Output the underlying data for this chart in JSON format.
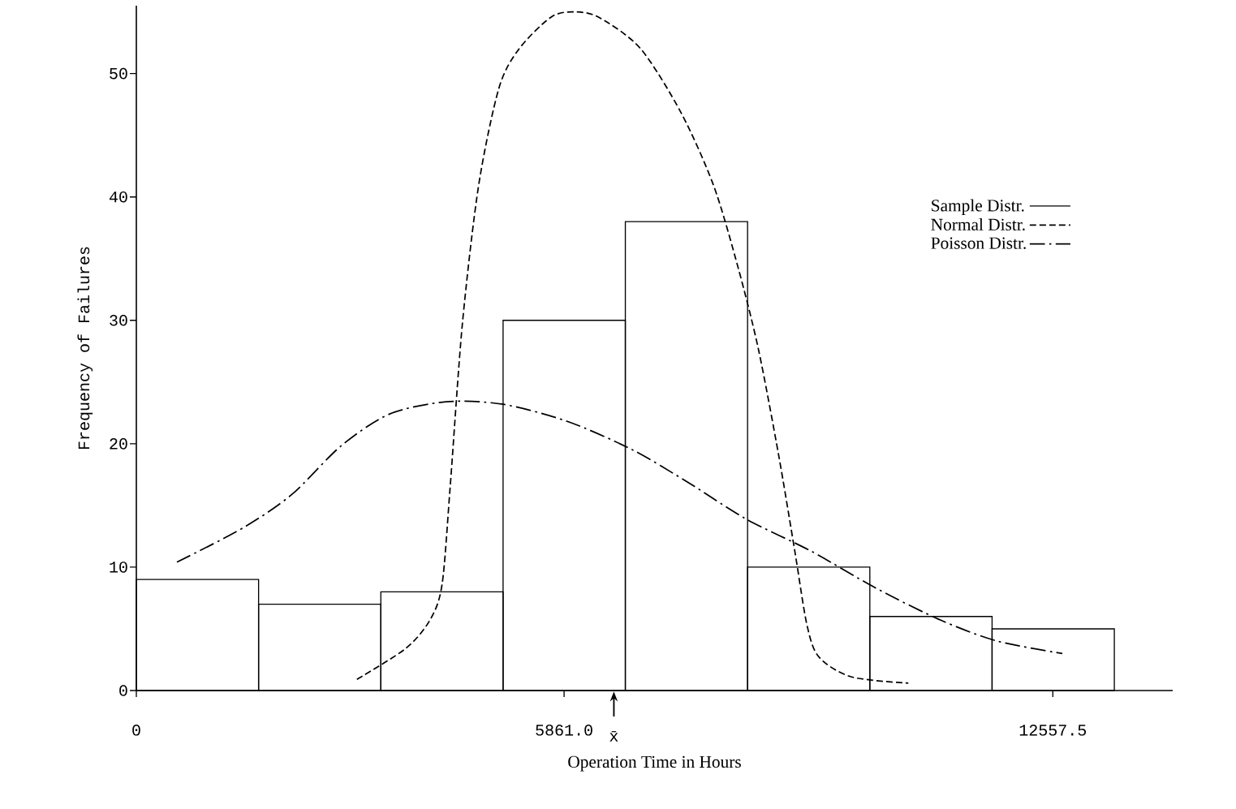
{
  "chart_data": {
    "type": "histogram",
    "xlabel": "Operation Time in Hours",
    "ylabel": "Frequency of Failures",
    "xlim": [
      0,
      14200
    ],
    "ylim": [
      0,
      55.5
    ],
    "xticks": [
      0,
      {
        "value": 5861,
        "label": "5861.0"
      },
      {
        "value": 12557.5,
        "label": "12557.5"
      }
    ],
    "yticks": [
      0,
      10,
      20,
      30,
      40,
      50
    ],
    "legend": "right",
    "grid": false,
    "annotations": [
      "x̄"
    ],
    "series": [
      {
        "name": "Sample Distr.",
        "color": "#000000",
        "line_style": "solid",
        "bins": [
          0,
          1675,
          3350,
          5025,
          6700,
          8375,
          10050,
          11725,
          13400
        ],
        "values": [
          9,
          7,
          8,
          30,
          38,
          10,
          6,
          5
        ]
      },
      {
        "name": "Normal Distr.",
        "type": "line",
        "color": "#000000",
        "line_style": "dashed",
        "x": [
          3022,
          3689,
          4022,
          4189,
          4300,
          4467,
          4689,
          4967,
          5244,
          5689,
          6022,
          6355,
          6911,
          7466,
          7911,
          8244,
          8522,
          8800,
          9022,
          9189,
          9355,
          9800,
          10577
        ],
        "values": [
          0.9,
          3.4,
          5.7,
          8.6,
          16.5,
          29.7,
          40.9,
          48.8,
          52.0,
          54.6,
          55.0,
          54.5,
          52.0,
          46.8,
          40.9,
          34.3,
          27.7,
          19.1,
          11.3,
          5.3,
          2.7,
          1.1,
          0.6
        ]
      },
      {
        "name": "Poisson Distr.",
        "type": "line",
        "color": "#000000",
        "line_style": "dashdot",
        "x": [
          556,
          1467,
          2133,
          2800,
          3466,
          4244,
          5022,
          5911,
          6800,
          7577,
          8355,
          9244,
          10133,
          11022,
          11800,
          12688
        ],
        "values": [
          10.4,
          13.2,
          15.9,
          19.8,
          22.4,
          23.4,
          23.2,
          21.8,
          19.5,
          16.8,
          13.9,
          11.3,
          8.3,
          5.7,
          4.0,
          3.0
        ]
      }
    ]
  }
}
